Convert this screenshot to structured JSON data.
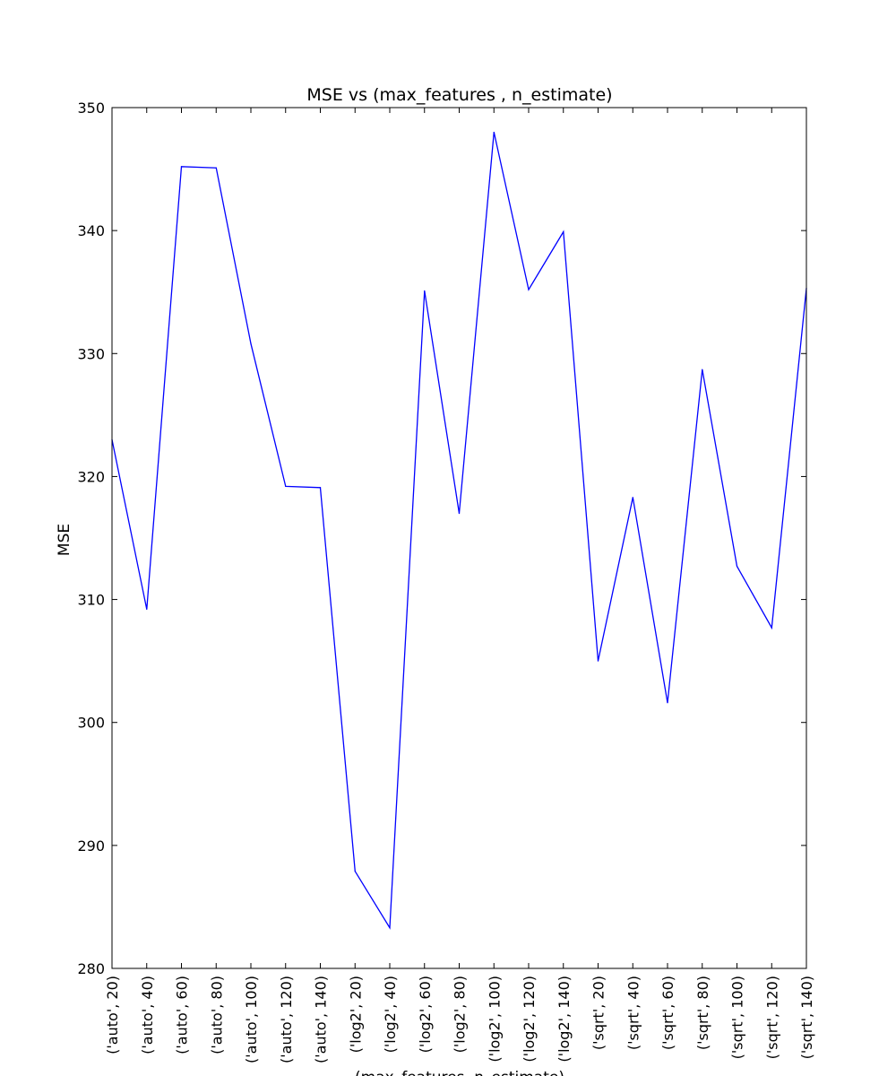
{
  "chart_data": {
    "type": "line",
    "title": "MSE vs (max_features , n_estimate)",
    "xlabel": "(max_features, n_estimate)",
    "ylabel": "MSE",
    "categories": [
      "('auto', 20)",
      "('auto', 40)",
      "('auto', 60)",
      "('auto', 80)",
      "('auto', 100)",
      "('auto', 120)",
      "('auto', 140)",
      "('log2', 20)",
      "('log2', 40)",
      "('log2', 60)",
      "('log2', 80)",
      "('log2', 100)",
      "('log2', 120)",
      "('log2', 140)",
      "('sqrt', 20)",
      "('sqrt', 40)",
      "('sqrt', 60)",
      "('sqrt', 80)",
      "('sqrt', 100)",
      "('sqrt', 120)",
      "('sqrt', 140)"
    ],
    "series": [
      {
        "values": [
          323.0,
          309.2,
          345.2,
          345.1,
          330.8,
          319.2,
          319.1,
          287.9,
          283.3,
          335.1,
          317.0,
          348.0,
          335.2,
          339.9,
          305.0,
          318.3,
          301.6,
          328.7,
          312.7,
          307.7,
          335.3
        ],
        "color": "#0000ff"
      }
    ],
    "ylim": [
      280,
      350
    ],
    "yticks": [
      280,
      290,
      300,
      310,
      320,
      330,
      340,
      350
    ],
    "grid": false,
    "legend": "none"
  }
}
